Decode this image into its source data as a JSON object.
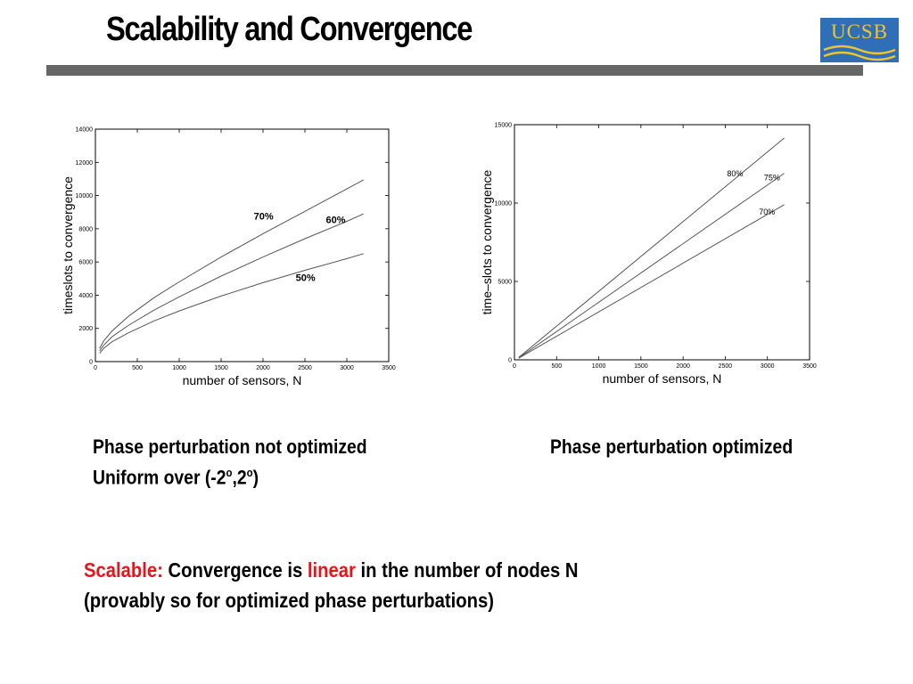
{
  "slide": {
    "title": "Scalability and Convergence",
    "logo_text": "UCSB",
    "colors": {
      "rule": "#666666",
      "logo_bg": "#2f6fb8",
      "logo_text": "#f0c330",
      "highlight": "#e8141c"
    }
  },
  "captions": {
    "left_line1": "Phase perturbation not optimized",
    "left_line2_prefix": "Uniform over (-2",
    "left_line2_deg": "o",
    "left_line2_mid": ",2",
    "left_line2_suffix": ")",
    "right_line1": "Phase perturbation optimized"
  },
  "summary": {
    "scalable": "Scalable:",
    "part1": " Convergence is ",
    "linear": "linear",
    "part2": " in the number of nodes N",
    "line2": "(provably so for optimized phase perturbations)"
  },
  "chart_data": [
    {
      "type": "line",
      "xlabel": "number of sensors, N",
      "ylabel": "timeslots to convergence",
      "xlim": [
        0,
        3500
      ],
      "ylim": [
        0,
        14000
      ],
      "xticks": [
        0,
        500,
        1000,
        1500,
        2000,
        2500,
        3000,
        3500
      ],
      "yticks": [
        0,
        2000,
        4000,
        6000,
        8000,
        10000,
        12000,
        14000
      ],
      "grid": false,
      "series": [
        {
          "name": "70%",
          "x": [
            50,
            100,
            200,
            400,
            700,
            1000,
            1500,
            2000,
            2500,
            3000,
            3200
          ],
          "y": [
            800,
            1250,
            1850,
            2750,
            3850,
            4800,
            6300,
            7700,
            9050,
            10400,
            10950
          ],
          "label_at": [
            1890,
            8550
          ]
        },
        {
          "name": "60%",
          "x": [
            50,
            100,
            200,
            400,
            700,
            1000,
            1500,
            2000,
            2500,
            3000,
            3200
          ],
          "y": [
            650,
            1000,
            1500,
            2200,
            3100,
            3900,
            5150,
            6300,
            7400,
            8450,
            8900
          ],
          "label_at": [
            2750,
            8350
          ]
        },
        {
          "name": "50%",
          "x": [
            50,
            100,
            200,
            400,
            700,
            1000,
            1500,
            2000,
            2500,
            3000,
            3200
          ],
          "y": [
            500,
            800,
            1200,
            1750,
            2450,
            3050,
            3950,
            4750,
            5500,
            6200,
            6500
          ],
          "label_at": [
            2390,
            4850
          ]
        }
      ]
    },
    {
      "type": "line",
      "xlabel": "number of sensors, N",
      "ylabel": "time–slots to convergence",
      "xlim": [
        0,
        3500
      ],
      "ylim": [
        0,
        15000
      ],
      "xticks": [
        0,
        500,
        1000,
        1500,
        2000,
        2500,
        3000,
        3500
      ],
      "yticks": [
        0,
        5000,
        10000,
        15000
      ],
      "grid": false,
      "series": [
        {
          "name": "80%",
          "x": [
            50,
            3200
          ],
          "y": [
            150,
            14150
          ],
          "label_at": [
            2520,
            11700
          ]
        },
        {
          "name": "75%",
          "x": [
            50,
            3200
          ],
          "y": [
            120,
            11900
          ],
          "label_at": [
            2960,
            11450
          ]
        },
        {
          "name": "70%",
          "x": [
            50,
            3200
          ],
          "y": [
            100,
            9900
          ],
          "label_at": [
            2900,
            9250
          ]
        }
      ]
    }
  ]
}
